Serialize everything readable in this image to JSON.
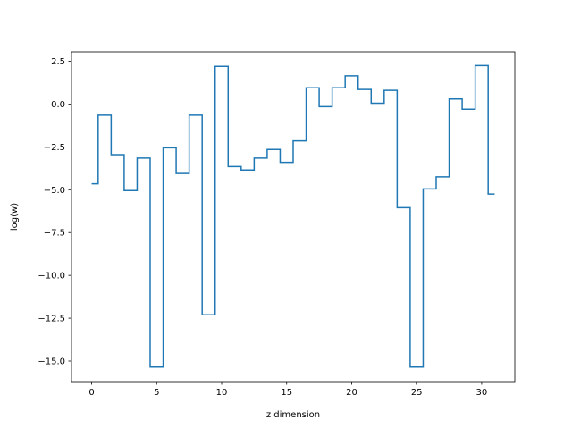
{
  "chart_data": {
    "type": "line",
    "drawstyle": "steps-mid",
    "title": "",
    "xlabel": "z dimension",
    "ylabel": "log(w)",
    "xlim": [
      -1.55,
      32.55
    ],
    "ylim": [
      -16.2,
      3.05
    ],
    "xticks": [
      0,
      5,
      10,
      15,
      20,
      25,
      30
    ],
    "yticks": [
      2.5,
      0.0,
      -2.5,
      -5.0,
      -7.5,
      -10.0,
      -12.5,
      -15.0
    ],
    "ytick_labels": [
      "2.5",
      "0.0",
      "−2.5",
      "−5.0",
      "−7.5",
      "−10.0",
      "−12.5",
      "−15.0"
    ],
    "grid": false,
    "series": [
      {
        "color": "#1f77b4",
        "x": [
          0,
          1,
          2,
          3,
          4,
          5,
          6,
          7,
          8,
          9,
          10,
          11,
          12,
          13,
          14,
          15,
          16,
          17,
          18,
          19,
          20,
          21,
          22,
          23,
          24,
          25,
          26,
          27,
          28,
          29,
          30,
          31
        ],
        "values": [
          -4.65,
          -0.65,
          -2.95,
          -5.05,
          -3.15,
          -15.35,
          -2.55,
          -4.05,
          -0.65,
          -12.3,
          2.2,
          -3.65,
          -3.85,
          -3.15,
          -2.65,
          -3.4,
          -2.15,
          0.95,
          -0.15,
          0.95,
          1.65,
          0.85,
          0.05,
          0.8,
          -6.05,
          -15.35,
          -4.95,
          -4.25,
          0.3,
          -0.3,
          2.25,
          -5.25
        ]
      }
    ]
  }
}
